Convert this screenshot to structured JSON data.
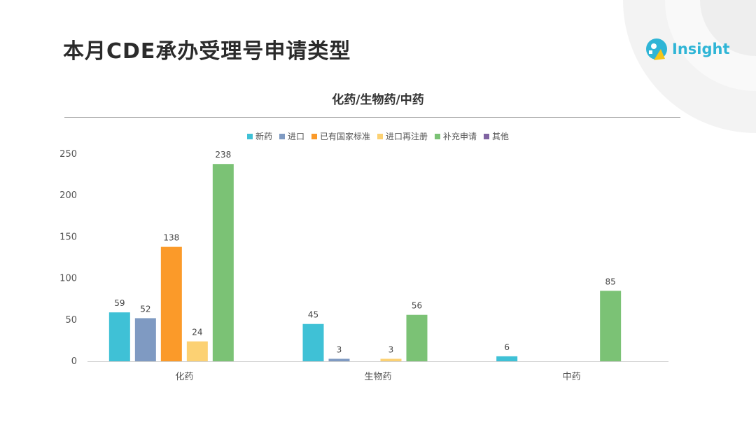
{
  "page": {
    "title": "本月CDE承办受理号申请类型",
    "logo_text": "Insight"
  },
  "colors": {
    "新药": "#3fc1d6",
    "进口": "#7f9ac2",
    "已有国家标准": "#fb9a29",
    "进口再注册": "#fcd173",
    "补充申请": "#7bc275",
    "其他": "#8064a2"
  },
  "chart_data": {
    "type": "bar",
    "title": "化药/生物药/中药",
    "categories": [
      "化药",
      "生物药",
      "中药"
    ],
    "ylim": [
      0,
      250
    ],
    "yticks": [
      0,
      50,
      100,
      150,
      200,
      250
    ],
    "legend_position": "top",
    "grid": false,
    "series": [
      {
        "name": "新药",
        "values": [
          59,
          45,
          6
        ]
      },
      {
        "name": "进口",
        "values": [
          52,
          3,
          null
        ]
      },
      {
        "name": "已有国家标准",
        "values": [
          138,
          null,
          null
        ]
      },
      {
        "name": "进口再注册",
        "values": [
          24,
          3,
          null
        ]
      },
      {
        "name": "补充申请",
        "values": [
          238,
          56,
          85
        ]
      },
      {
        "name": "其他",
        "values": [
          null,
          null,
          null
        ]
      }
    ]
  }
}
